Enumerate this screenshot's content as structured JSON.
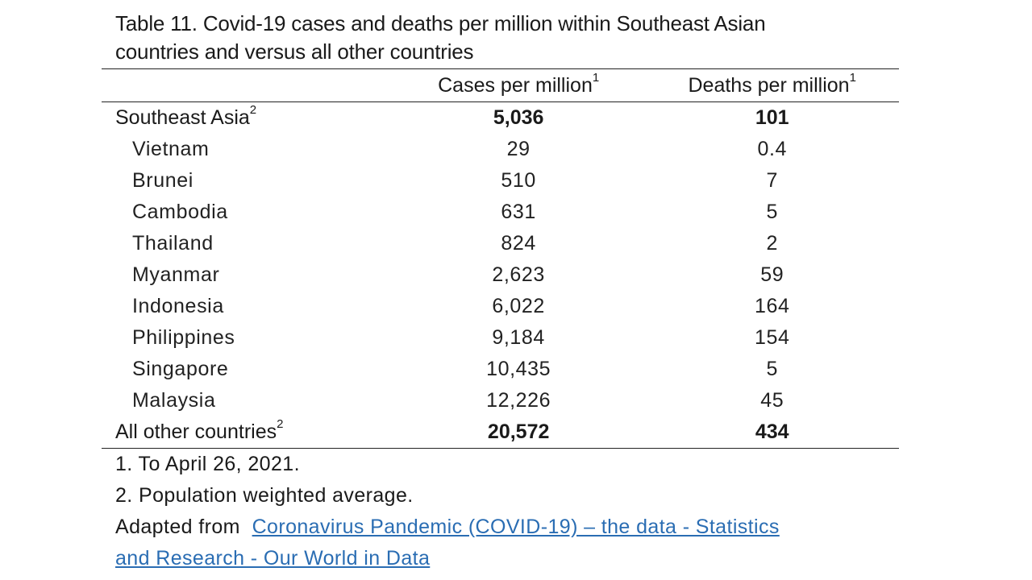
{
  "caption": {
    "line1": "Table 11. Covid-19 cases and deaths per million within Southeast Asian",
    "line2": "countries and versus all other countries"
  },
  "table": {
    "headers": {
      "cases": "Cases per million",
      "cases_sup": "1",
      "deaths": "Deaths per million",
      "deaths_sup": "1"
    },
    "southeast_asia": {
      "label": "Southeast Asia",
      "sup": "2",
      "cases": "5,036",
      "deaths": "101"
    },
    "rows": [
      {
        "country": "Vietnam",
        "cases": "29",
        "deaths": "0.4"
      },
      {
        "country": "Brunei",
        "cases": "510",
        "deaths": "7"
      },
      {
        "country": "Cambodia",
        "cases": "631",
        "deaths": "5"
      },
      {
        "country": "Thailand",
        "cases": "824",
        "deaths": "2"
      },
      {
        "country": "Myanmar",
        "cases": "2,623",
        "deaths": "59"
      },
      {
        "country": "Indonesia",
        "cases": "6,022",
        "deaths": "164"
      },
      {
        "country": "Philippines",
        "cases": "9,184",
        "deaths": "154"
      },
      {
        "country": "Singapore",
        "cases": "10,435",
        "deaths": "5"
      },
      {
        "country": "Malaysia",
        "cases": "12,226",
        "deaths": "45"
      }
    ],
    "all_other": {
      "label": "All other countries",
      "sup": "2",
      "cases": "20,572",
      "deaths": "434"
    }
  },
  "notes": {
    "note1": "1. To April 26, 2021.",
    "note2": "2. Population weighted average.",
    "adapted_prefix": "Adapted from",
    "link_line1": "Coronavirus Pandemic (COVID-19) – the data - Statistics",
    "link_line2": "and Research - Our World in Data"
  },
  "colors": {
    "link": "#2a6db3",
    "text": "#1a1a1a"
  }
}
